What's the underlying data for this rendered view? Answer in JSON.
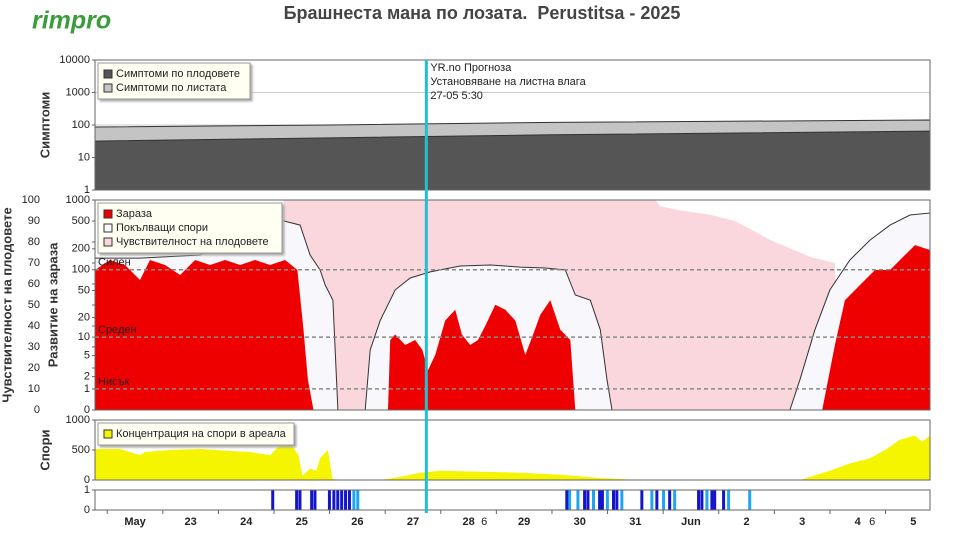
{
  "header": {
    "logo": "rimpro",
    "title": "Брашнеста мана по лозата.  Perustitsa - 2025"
  },
  "x_axis": {
    "xlim": [
      -0.22,
      14.8
    ],
    "xticks": [
      {
        "value": 0,
        "label": "May"
      },
      {
        "value": 1,
        "label": "23"
      },
      {
        "value": 2,
        "label": "24"
      },
      {
        "value": 3,
        "label": "25"
      },
      {
        "value": 4,
        "label": "26"
      },
      {
        "value": 5,
        "label": "27"
      },
      {
        "value": 6,
        "label": "28"
      },
      {
        "value": 7,
        "label": "29"
      },
      {
        "value": 8,
        "label": "30"
      },
      {
        "value": 9,
        "label": "31"
      },
      {
        "value": 10,
        "label": "Jun"
      },
      {
        "value": 11,
        "label": "2"
      },
      {
        "value": 12,
        "label": "3"
      },
      {
        "value": 13,
        "label": "4"
      },
      {
        "value": 14,
        "label": "5"
      }
    ],
    "xminor_ticks": [
      {
        "value": 6.78,
        "label": "6"
      },
      {
        "value": 13.76,
        "label": "6"
      }
    ]
  },
  "marker": {
    "x": 5.74,
    "color": "#20c0d0",
    "lines": [
      "YR.no Прогноза",
      "Установяване на листна влага",
      "27-05 5:30"
    ]
  },
  "chart_data": [
    {
      "type": "area",
      "ylabel": "Симптоми",
      "ylog": true,
      "ylim": [
        1,
        10000
      ],
      "yticks": [
        1,
        10,
        100,
        1000,
        10000
      ],
      "grid": true,
      "legend": "upper left",
      "series": [
        {
          "name": "Симптоми по плодовете",
          "color": "#555555",
          "x": [
            -0.22,
            4,
            8,
            14.8
          ],
          "values": [
            32,
            40,
            50,
            65
          ]
        },
        {
          "name": "Симптоми по листата",
          "color": "#c4c4c4",
          "x": [
            -0.22,
            4,
            8,
            14.8
          ],
          "values": [
            87,
            100,
            120,
            143
          ]
        }
      ]
    },
    {
      "type": "area",
      "ylabel": "Чувствителност на плодовете",
      "y2label": "Развитие на зараза",
      "ylim": [
        0,
        100
      ],
      "yticks": [
        0,
        10,
        20,
        30,
        40,
        50,
        60,
        70,
        80,
        90,
        100
      ],
      "y2log": true,
      "y2lim": [
        0,
        1000
      ],
      "y2ticks": [
        0,
        1,
        2,
        5,
        10,
        20,
        50,
        100,
        200,
        500,
        1000
      ],
      "grid": false,
      "legend": "upper left",
      "thresholds": [
        {
          "value": 100,
          "label": "Силен"
        },
        {
          "value": 10,
          "label": "Среден"
        },
        {
          "value": 1,
          "label": "Нисък"
        }
      ],
      "series": [
        {
          "name": "Зараза",
          "color": "#ee0000",
          "axis": "y2",
          "x": [
            -0.22,
            0.05,
            0.32,
            0.59,
            0.77,
            1.04,
            1.31,
            1.58,
            1.85,
            2.12,
            2.39,
            2.66,
            2.93,
            3.2,
            3.42,
            3.53,
            3.61,
            3.71,
            5.05,
            5.09,
            5.18,
            5.36,
            5.54,
            5.67,
            5.77,
            5.9,
            6.08,
            6.26,
            6.38,
            6.53,
            6.67,
            6.8,
            6.98,
            7.16,
            7.34,
            7.52,
            7.66,
            7.79,
            7.97,
            8.15,
            8.33,
            8.42,
            12.86,
            13.09,
            13.27,
            13.54,
            13.81,
            14.08,
            14.35,
            14.53,
            14.8
          ],
          "values": [
            99,
            138,
            117,
            71,
            138,
            117,
            84,
            138,
            117,
            138,
            117,
            138,
            117,
            138,
            99,
            13,
            1.7,
            0,
            0,
            9,
            11,
            7.5,
            9,
            6.2,
            2.7,
            5.1,
            18,
            26,
            11,
            7.5,
            9,
            15,
            31,
            26,
            18,
            5.1,
            11,
            22,
            36,
            13,
            9,
            0,
            0,
            7.5,
            36,
            60,
            99,
            99,
            163,
            226,
            192
          ]
        },
        {
          "name": "Покълващи спори",
          "color": "#f8f8fc",
          "axis": "y2",
          "x": [
            -0.22,
            0.59,
            1.67,
            3.11,
            3.47,
            3.65,
            3.83,
            3.92,
            4.06,
            4.15,
            4.64,
            4.73,
            4.91,
            5.18,
            5.45,
            5.81,
            6.35,
            6.89,
            7.43,
            7.88,
            8.24,
            8.42,
            8.69,
            8.87,
            8.99,
            9.08,
            12.28,
            12.46,
            12.73,
            13.0,
            13.36,
            13.72,
            14.08,
            14.44,
            14.8
          ],
          "values": [
            147,
            147,
            163,
            517,
            438,
            163,
            99,
            60,
            36,
            0,
            0,
            6.2,
            18,
            51,
            76,
            93,
            113,
            117,
            109,
            106,
            99,
            43,
            36,
            13,
            1.7,
            0,
            0,
            1.7,
            13,
            51,
            138,
            267,
            438,
            610,
            651
          ]
        },
        {
          "name": "Чувствителност на плодовете",
          "color": "#f9d7dc",
          "x": [
            -0.22,
            3.17,
            3.17,
            9.86,
            9.95,
            10.31,
            10.85,
            11.29,
            11.65,
            11.92,
            12.28,
            12.64,
            13.09,
            13.18,
            14.8
          ],
          "values": [
            0,
            0,
            100,
            100,
            97,
            95,
            93,
            90,
            85,
            81,
            77,
            73,
            70,
            0,
            0
          ]
        }
      ]
    },
    {
      "type": "area",
      "ylabel": "Спори",
      "ylim": [
        0,
        1000
      ],
      "yticks": [
        0,
        500,
        1000
      ],
      "grid": false,
      "legend": "upper left",
      "series": [
        {
          "name": "Концентрация на спори в ареала",
          "color": "#f5f500",
          "x": [
            -0.22,
            0.23,
            0.59,
            0.68,
            1.13,
            1.67,
            2.21,
            2.57,
            2.93,
            3.11,
            3.29,
            3.44,
            3.51,
            3.65,
            3.76,
            3.83,
            3.97,
            4.05,
            4.28,
            4.91,
            5.27,
            5.63,
            5.99,
            6.71,
            7.43,
            8.15,
            8.87,
            9.59,
            12.46,
            13.0,
            13.36,
            13.72,
            13.99,
            14.26,
            14.53,
            14.66,
            14.8
          ],
          "values": [
            517,
            517,
            414,
            466,
            500,
            517,
            483,
            466,
            414,
            586,
            621,
            414,
            69,
            190,
            155,
            362,
            500,
            17,
            0,
            0,
            52,
            121,
            155,
            138,
            121,
            86,
            34,
            0,
            0,
            155,
            276,
            362,
            500,
            672,
            741,
            638,
            741
          ]
        }
      ]
    },
    {
      "type": "bar",
      "ylim": [
        0,
        1
      ],
      "yticks": [
        0,
        1
      ],
      "grid": false,
      "series": [
        {
          "color": "#1414c8",
          "x": [
            2.95,
            3.38,
            3.44,
            3.65,
            3.71,
            3.97,
            4.05,
            4.12,
            4.19,
            4.26,
            4.33,
            8.24,
            8.56,
            8.62,
            8.83,
            8.88,
            9.08,
            9.14,
            9.59,
            9.86,
            10.09,
            10.61,
            10.67,
            10.85,
            10.9,
            11.06
          ],
          "values": [
            1,
            1,
            1,
            1,
            1,
            1,
            1,
            1,
            1,
            1,
            1,
            1,
            1,
            1,
            1,
            1,
            1,
            1,
            1,
            1,
            1,
            1,
            1,
            1,
            1,
            1
          ]
        },
        {
          "color": "#1ea6f0",
          "x": [
            4.41,
            4.48,
            8.29,
            8.44,
            8.72,
            8.97,
            9.23,
            9.77,
            9.98,
            10.18,
            10.76,
            11.15,
            11.53
          ],
          "values": [
            1,
            1,
            1,
            1,
            1,
            1,
            1,
            1,
            1,
            1,
            1,
            1,
            1
          ]
        }
      ]
    }
  ]
}
